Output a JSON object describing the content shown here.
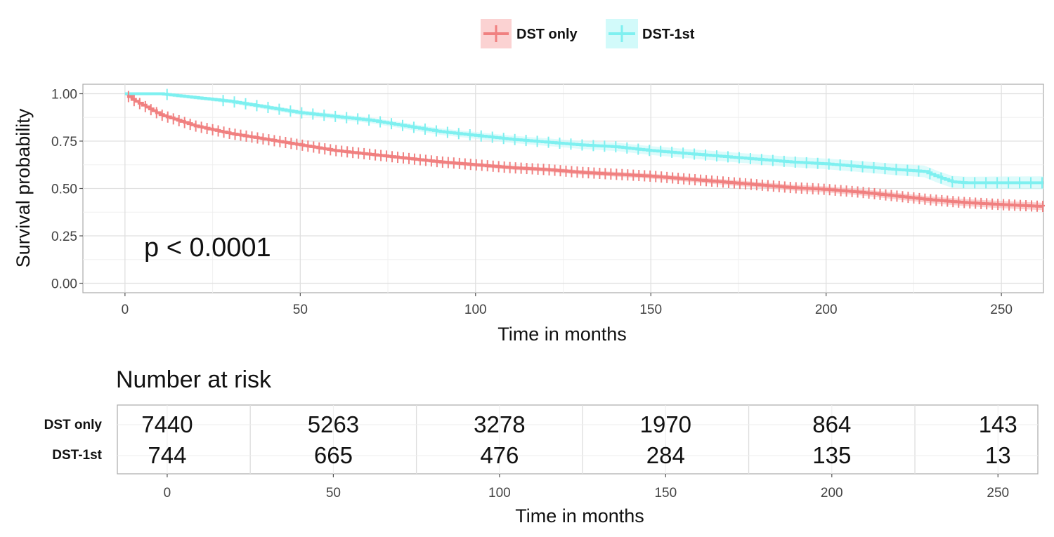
{
  "chart_data": [
    {
      "type": "line",
      "chart_kind": "kaplan-meier survival curve",
      "xlabel": "Time in months",
      "ylabel": "Survival probability",
      "xlim": [
        -12,
        262
      ],
      "ylim": [
        -0.05,
        1.05
      ],
      "x_ticks": [
        0,
        50,
        100,
        150,
        200,
        250
      ],
      "x_tick_labels": [
        "0",
        "50",
        "100",
        "150",
        "200",
        "250"
      ],
      "y_ticks": [
        0,
        0.25,
        0.5,
        0.75,
        1.0
      ],
      "y_tick_labels": [
        "0.00",
        "0.25",
        "0.50",
        "0.75",
        "1.00"
      ],
      "grid": true,
      "legend_position": "top",
      "annotation": "p < 0.0001",
      "series": [
        {
          "name": "DST only",
          "color": "#f08080",
          "ci_color": "#f8b4b4",
          "x": [
            0,
            2,
            5,
            10,
            15,
            20,
            25,
            30,
            40,
            50,
            60,
            70,
            80,
            90,
            100,
            110,
            120,
            130,
            140,
            150,
            160,
            170,
            180,
            190,
            200,
            210,
            220,
            230,
            240,
            250,
            262
          ],
          "y": [
            1.0,
            0.97,
            0.94,
            0.89,
            0.86,
            0.83,
            0.81,
            0.79,
            0.76,
            0.73,
            0.7,
            0.68,
            0.66,
            0.64,
            0.625,
            0.61,
            0.6,
            0.585,
            0.575,
            0.565,
            0.55,
            0.535,
            0.52,
            0.505,
            0.495,
            0.48,
            0.46,
            0.44,
            0.425,
            0.415,
            0.405
          ]
        },
        {
          "name": "DST-1st",
          "color": "#7ef0f0",
          "ci_color": "#c8f8f8",
          "x": [
            0,
            10,
            15,
            20,
            25,
            30,
            40,
            50,
            60,
            70,
            80,
            90,
            100,
            110,
            120,
            130,
            140,
            150,
            160,
            170,
            180,
            190,
            200,
            210,
            220,
            228,
            232,
            236,
            240,
            250,
            262
          ],
          "y": [
            1.0,
            1.0,
            0.99,
            0.98,
            0.97,
            0.96,
            0.93,
            0.9,
            0.88,
            0.86,
            0.83,
            0.8,
            0.78,
            0.76,
            0.745,
            0.73,
            0.72,
            0.7,
            0.685,
            0.67,
            0.655,
            0.64,
            0.63,
            0.615,
            0.6,
            0.59,
            0.56,
            0.535,
            0.53,
            0.53,
            0.53
          ]
        }
      ]
    },
    {
      "type": "table",
      "title": "Number at risk",
      "xlabel": "Time in months",
      "x_ticks": [
        0,
        50,
        100,
        150,
        200,
        250
      ],
      "x_tick_labels": [
        "0",
        "50",
        "100",
        "150",
        "200",
        "250"
      ],
      "groups": [
        "DST only",
        "DST-1st"
      ],
      "rows": [
        {
          "group": "DST only",
          "values": [
            "7440",
            "5263",
            "3278",
            "1970",
            "864",
            "143"
          ]
        },
        {
          "group": "DST-1st",
          "values": [
            "744",
            "665",
            "476",
            "284",
            "135",
            "13"
          ]
        }
      ]
    }
  ]
}
